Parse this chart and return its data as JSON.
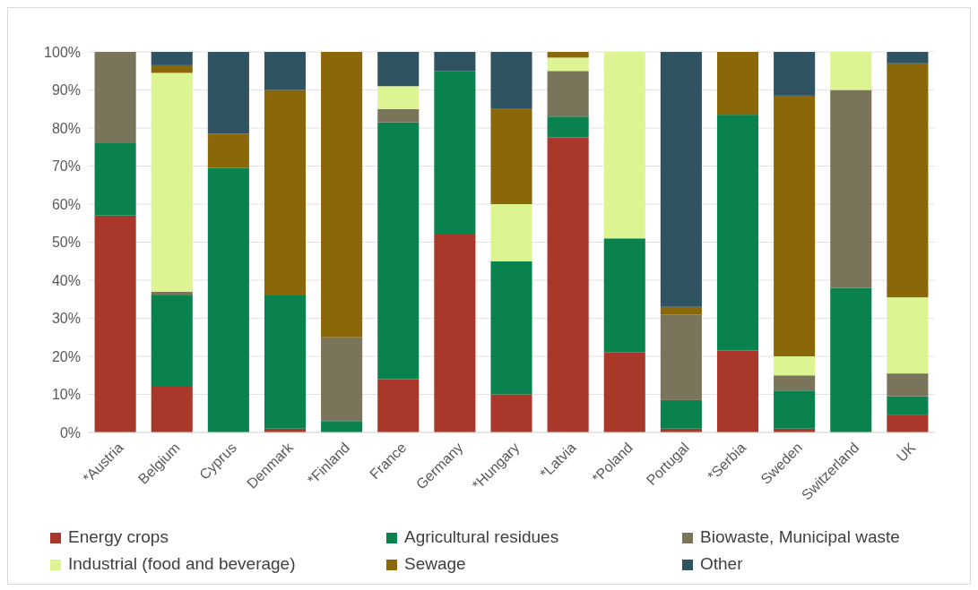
{
  "chart_data": {
    "type": "bar",
    "stacked": true,
    "categories": [
      "*Austria",
      "Belgium",
      "Cyprus",
      "Denmark",
      "*Finland",
      "France",
      "Germany",
      "*Hungary",
      "*Latvia",
      "*Poland",
      "Portugal",
      "*Serbia",
      "Sweden",
      "Switzerland",
      "UK"
    ],
    "series": [
      {
        "name": "Energy crops",
        "color": "#a9372a",
        "values": [
          57,
          12,
          0,
          1,
          0,
          14,
          52,
          10,
          77.5,
          21,
          1,
          21.5,
          1,
          0,
          4.5
        ]
      },
      {
        "name": "Agricultural residues",
        "color": "#0a824d",
        "values": [
          19,
          24,
          69.5,
          35,
          3,
          67.5,
          43,
          35,
          5.5,
          30,
          7.5,
          62,
          10,
          38,
          5
        ]
      },
      {
        "name": "Biowaste, Municipal waste",
        "color": "#7a745b",
        "values": [
          24,
          1,
          0,
          0,
          22,
          3.5,
          0,
          0,
          12,
          0,
          22.5,
          0,
          4,
          52,
          6
        ]
      },
      {
        "name": "Industrial (food and beverage)",
        "color": "#dcf492",
        "values": [
          0,
          57.5,
          0,
          0,
          0,
          6,
          0,
          15,
          3.5,
          49,
          0,
          0,
          5,
          10,
          20
        ]
      },
      {
        "name": "Sewage",
        "color": "#8a6709",
        "values": [
          0,
          2,
          9,
          54,
          75,
          0,
          0,
          25,
          1.5,
          0,
          2,
          16.5,
          68.5,
          0,
          61.5
        ]
      },
      {
        "name": "Other",
        "color": "#2f5360",
        "values": [
          0,
          3.5,
          21.5,
          10,
          0,
          9,
          5,
          15,
          0,
          0,
          67,
          0,
          11.5,
          0,
          3
        ]
      }
    ],
    "ylim": [
      0,
      100
    ],
    "yticks": [
      {
        "value": 0,
        "label": "0%"
      },
      {
        "value": 10,
        "label": "10%"
      },
      {
        "value": 20,
        "label": "20%"
      },
      {
        "value": 30,
        "label": "30%"
      },
      {
        "value": 40,
        "label": "40%"
      },
      {
        "value": 50,
        "label": "50%"
      },
      {
        "value": 60,
        "label": "60%"
      },
      {
        "value": 70,
        "label": "70%"
      },
      {
        "value": 80,
        "label": "80%"
      },
      {
        "value": 90,
        "label": "90%"
      },
      {
        "value": 100,
        "label": "100%"
      }
    ],
    "grid": "y",
    "legend": "bottom"
  }
}
